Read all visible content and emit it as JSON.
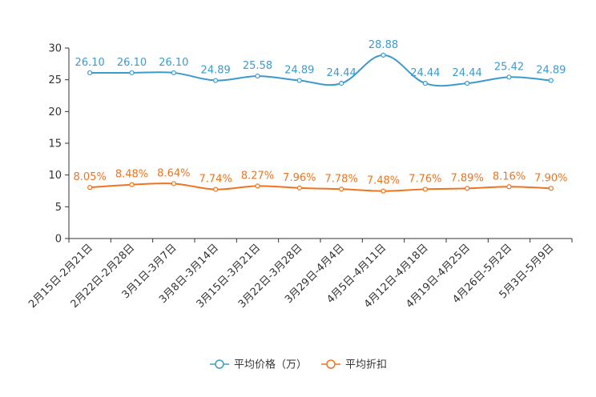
{
  "chart_data": {
    "type": "line",
    "categories": [
      "2月15日-2月21日",
      "2月22日-2月28日",
      "3月1日-3月7日",
      "3月8日-3月14日",
      "3月15日-3月21日",
      "3月22日-3月28日",
      "3月29日-4月4日",
      "4月5日-4月11日",
      "4月12日-4月18日",
      "4月19日-4月25日",
      "4月26日-5月2日",
      "5月3日-5月9日"
    ],
    "ylim": [
      0,
      30
    ],
    "yticks": [
      0,
      5,
      10,
      15,
      20,
      25,
      30
    ],
    "series": [
      {
        "name": "平均价格（万）",
        "color": "#3d9acd",
        "values": [
          26.1,
          26.1,
          26.1,
          24.89,
          25.58,
          24.89,
          24.44,
          28.88,
          24.44,
          24.44,
          25.42,
          24.89
        ],
        "labels": [
          "26.10",
          "26.10",
          "26.10",
          "24.89",
          "25.58",
          "24.89",
          "24.44",
          "28.88",
          "24.44",
          "24.44",
          "25.42",
          "24.89"
        ]
      },
      {
        "name": "平均折扣",
        "color": "#f0731e",
        "values": [
          8.05,
          8.48,
          8.64,
          7.74,
          8.27,
          7.96,
          7.78,
          7.48,
          7.76,
          7.89,
          8.16,
          7.9
        ],
        "labels": [
          "8.05%",
          "8.48%",
          "8.64%",
          "7.74%",
          "8.27%",
          "7.96%",
          "7.78%",
          "7.48%",
          "7.76%",
          "7.89%",
          "8.16%",
          "7.90%"
        ]
      }
    ],
    "legend_position": "bottom"
  }
}
